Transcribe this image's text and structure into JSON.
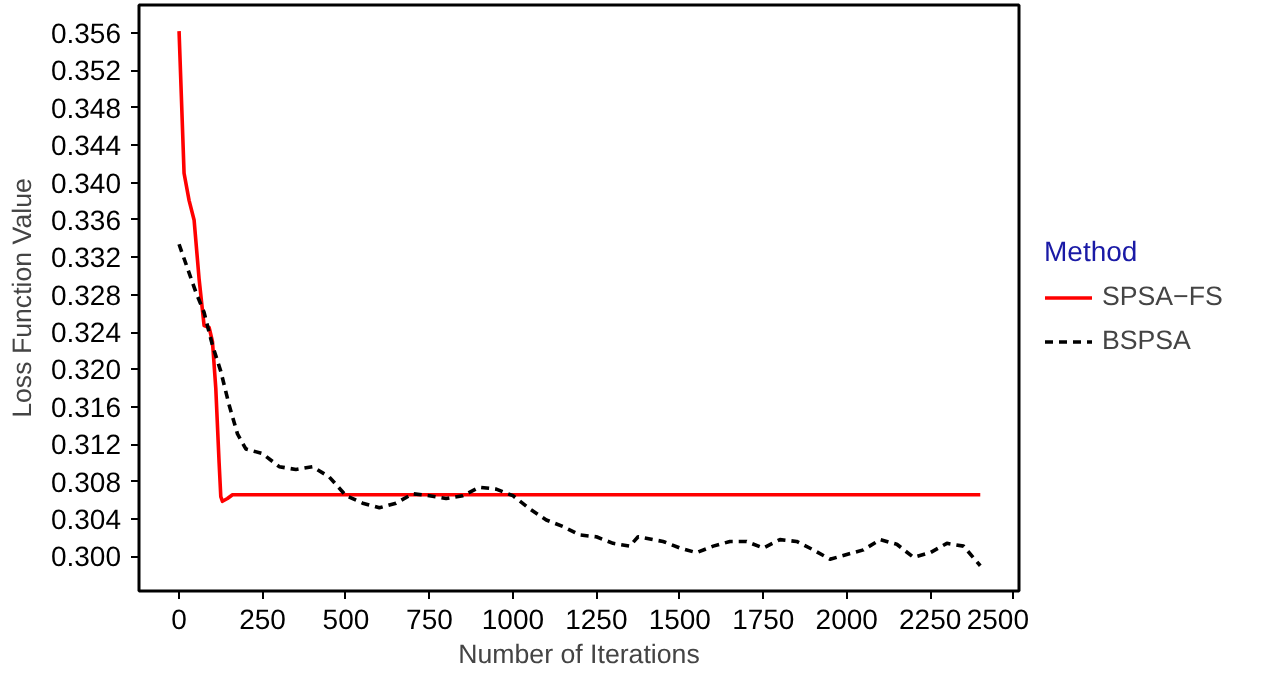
{
  "chart_data": {
    "type": "line",
    "xlabel": "Number of Iterations",
    "ylabel": "Loss Function Value",
    "legend_title": "Method",
    "legend": "right",
    "grid": false,
    "marker": "none",
    "xlim": [
      -120,
      2516
    ],
    "ylim": [
      0.2963,
      0.359
    ],
    "xticks": [
      0,
      250,
      500,
      750,
      1000,
      1250,
      1500,
      1750,
      2000,
      2250,
      2500
    ],
    "yticks": [
      {
        "value": 0.3,
        "label": "0.300"
      },
      {
        "value": 0.304,
        "label": "0.304"
      },
      {
        "value": 0.308,
        "label": "0.308"
      },
      {
        "value": 0.312,
        "label": "0.312"
      },
      {
        "value": 0.316,
        "label": "0.316"
      },
      {
        "value": 0.32,
        "label": "0.320"
      },
      {
        "value": 0.324,
        "label": "0.324"
      },
      {
        "value": 0.328,
        "label": "0.328"
      },
      {
        "value": 0.332,
        "label": "0.332"
      },
      {
        "value": 0.336,
        "label": "0.336"
      },
      {
        "value": 0.34,
        "label": "0.340"
      },
      {
        "value": 0.344,
        "label": "0.344"
      },
      {
        "value": 0.348,
        "label": "0.348"
      },
      {
        "value": 0.352,
        "label": "0.352"
      },
      {
        "value": 0.356,
        "label": "0.356"
      }
    ],
    "series": [
      {
        "name": "SPSA−FS",
        "color": "#ff0000",
        "line_style": "solid",
        "x": [
          0,
          15,
          30,
          45,
          60,
          75,
          90,
          100,
          110,
          120,
          125,
          130,
          145,
          160,
          2400
        ],
        "values": [
          0.3562,
          0.341,
          0.3381,
          0.336,
          0.3297,
          0.3247,
          0.3245,
          0.323,
          0.318,
          0.31,
          0.3064,
          0.3059,
          0.3062,
          0.3066,
          0.3066
        ]
      },
      {
        "name": "BSPSA",
        "color": "#000000",
        "line_style": "dashed",
        "x": [
          0,
          50,
          75,
          100,
          125,
          150,
          175,
          200,
          250,
          300,
          350,
          400,
          450,
          500,
          550,
          600,
          650,
          700,
          750,
          800,
          850,
          900,
          950,
          1000,
          1050,
          1100,
          1150,
          1200,
          1250,
          1300,
          1350,
          1375,
          1450,
          1500,
          1550,
          1600,
          1650,
          1700,
          1750,
          1800,
          1850,
          1900,
          1950,
          2000,
          2050,
          2100,
          2150,
          2200,
          2250,
          2300,
          2350,
          2400
        ],
        "values": [
          0.3334,
          0.3283,
          0.3261,
          0.3226,
          0.3198,
          0.3162,
          0.3131,
          0.3115,
          0.311,
          0.3096,
          0.3093,
          0.3096,
          0.3085,
          0.3065,
          0.3057,
          0.3052,
          0.3057,
          0.3067,
          0.3065,
          0.3062,
          0.3065,
          0.3074,
          0.3072,
          0.3065,
          0.3051,
          0.3039,
          0.3032,
          0.3023,
          0.3021,
          0.3014,
          0.3011,
          0.3021,
          0.3016,
          0.3009,
          0.3004,
          0.3011,
          0.3016,
          0.3016,
          0.3009,
          0.3018,
          0.3016,
          0.3007,
          0.2997,
          0.3002,
          0.3007,
          0.3018,
          0.3013,
          0.2999,
          0.3004,
          0.3014,
          0.3011,
          0.299
        ]
      }
    ]
  }
}
